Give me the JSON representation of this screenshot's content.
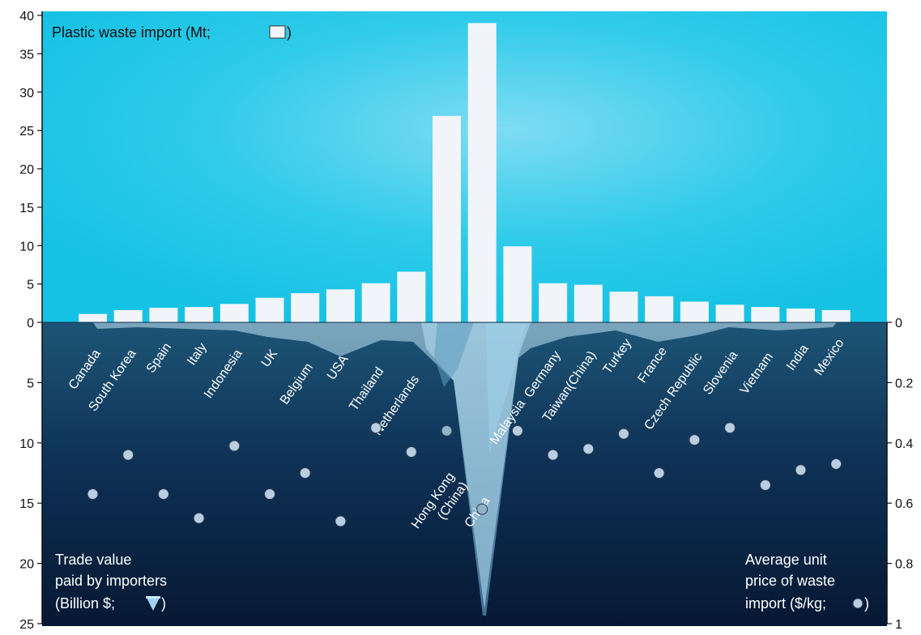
{
  "chart_data": {
    "type": "bar",
    "titles": {
      "upper": "Plastic waste import (Mt; ",
      "upper_close": ")",
      "left_line1": "Trade value",
      "left_line2": "paid by importers",
      "left_line3": "(Billion $; ",
      "left_line3_close": ")",
      "right_line1": "Average unit",
      "right_line2": "price of waste",
      "right_line3": "import ($/kg; ",
      "right_line3_close": ")"
    },
    "upper_axis": {
      "ylim": [
        0,
        40
      ],
      "ticks": [
        0,
        5,
        10,
        15,
        20,
        25,
        30,
        35,
        40
      ]
    },
    "lower_left_axis": {
      "ylim": [
        0,
        25
      ],
      "ticks": [
        0,
        5,
        10,
        15,
        20,
        25
      ]
    },
    "lower_right_axis": {
      "ylim": [
        0,
        1
      ],
      "ticks": [
        "0",
        "0.2",
        "0.4",
        "0.6",
        "0.8",
        "1"
      ]
    },
    "countries": [
      {
        "name": "Canada",
        "import_mt": 1.1,
        "trade_value_bn": 0.3,
        "unit_price": 0.57
      },
      {
        "name": "South Korea",
        "import_mt": 1.6,
        "trade_value_bn": 0.4,
        "unit_price": 0.44
      },
      {
        "name": "Spain",
        "import_mt": 1.9,
        "trade_value_bn": 0.5,
        "unit_price": 0.57
      },
      {
        "name": "Italy",
        "import_mt": 2.0,
        "trade_value_bn": 0.6,
        "unit_price": 0.65
      },
      {
        "name": "Indonesia",
        "import_mt": 2.4,
        "trade_value_bn": 1.0,
        "unit_price": 0.41
      },
      {
        "name": "UK",
        "import_mt": 3.2,
        "trade_value_bn": 1.8,
        "unit_price": 0.57
      },
      {
        "name": "Belgium",
        "import_mt": 3.8,
        "trade_value_bn": 2.4,
        "unit_price": 0.5
      },
      {
        "name": "USA",
        "import_mt": 4.3,
        "trade_value_bn": 3.0,
        "unit_price": 0.66
      },
      {
        "name": "Thailand",
        "import_mt": 5.1,
        "trade_value_bn": 1.6,
        "unit_price": 0.35
      },
      {
        "name": "Netherlands",
        "import_mt": 6.6,
        "trade_value_bn": 2.0,
        "unit_price": 0.43
      },
      {
        "name": "Hong Kong (China)",
        "import_mt": 26.9,
        "trade_value_bn": 6.5,
        "unit_price": 0.36
      },
      {
        "name": "China",
        "import_mt": 39.0,
        "trade_value_bn": 24.0,
        "unit_price": 0.62
      },
      {
        "name": "Malaysia",
        "import_mt": 9.9,
        "trade_value_bn": 2.8,
        "unit_price": 0.36
      },
      {
        "name": "Germany",
        "import_mt": 5.1,
        "trade_value_bn": 2.2,
        "unit_price": 0.44
      },
      {
        "name": "Taiwan(China)",
        "import_mt": 4.9,
        "trade_value_bn": 1.3,
        "unit_price": 0.42
      },
      {
        "name": "Turkey",
        "import_mt": 4.0,
        "trade_value_bn": 1.0,
        "unit_price": 0.37
      },
      {
        "name": "France",
        "import_mt": 3.4,
        "trade_value_bn": 1.5,
        "unit_price": 0.5
      },
      {
        "name": "Czech Republic",
        "import_mt": 2.7,
        "trade_value_bn": 0.9,
        "unit_price": 0.39
      },
      {
        "name": "Slovenia",
        "import_mt": 2.3,
        "trade_value_bn": 0.4,
        "unit_price": 0.35
      },
      {
        "name": "Vietnam",
        "import_mt": 2.0,
        "trade_value_bn": 0.5,
        "unit_price": 0.54
      },
      {
        "name": "India",
        "import_mt": 1.8,
        "trade_value_bn": 0.4,
        "unit_price": 0.49
      },
      {
        "name": "Mexico",
        "import_mt": 1.6,
        "trade_value_bn": 0.3,
        "unit_price": 0.47
      }
    ],
    "colors": {
      "sky": "#1dc6e6",
      "sky_glow": "#7fdcf3",
      "sea_top": "#1d5576",
      "sea_bottom": "#071a36",
      "bar_fill": "#f1f5f9",
      "iceberg": "#9fd3ee",
      "iceberg_dark": "#6aa7c9",
      "dot_fill": "#b9cde0",
      "dot_outline": "#2a3c52",
      "axis": "#111111",
      "text_on_sea": "#ffffff",
      "text_on_sky": "#111111"
    }
  }
}
